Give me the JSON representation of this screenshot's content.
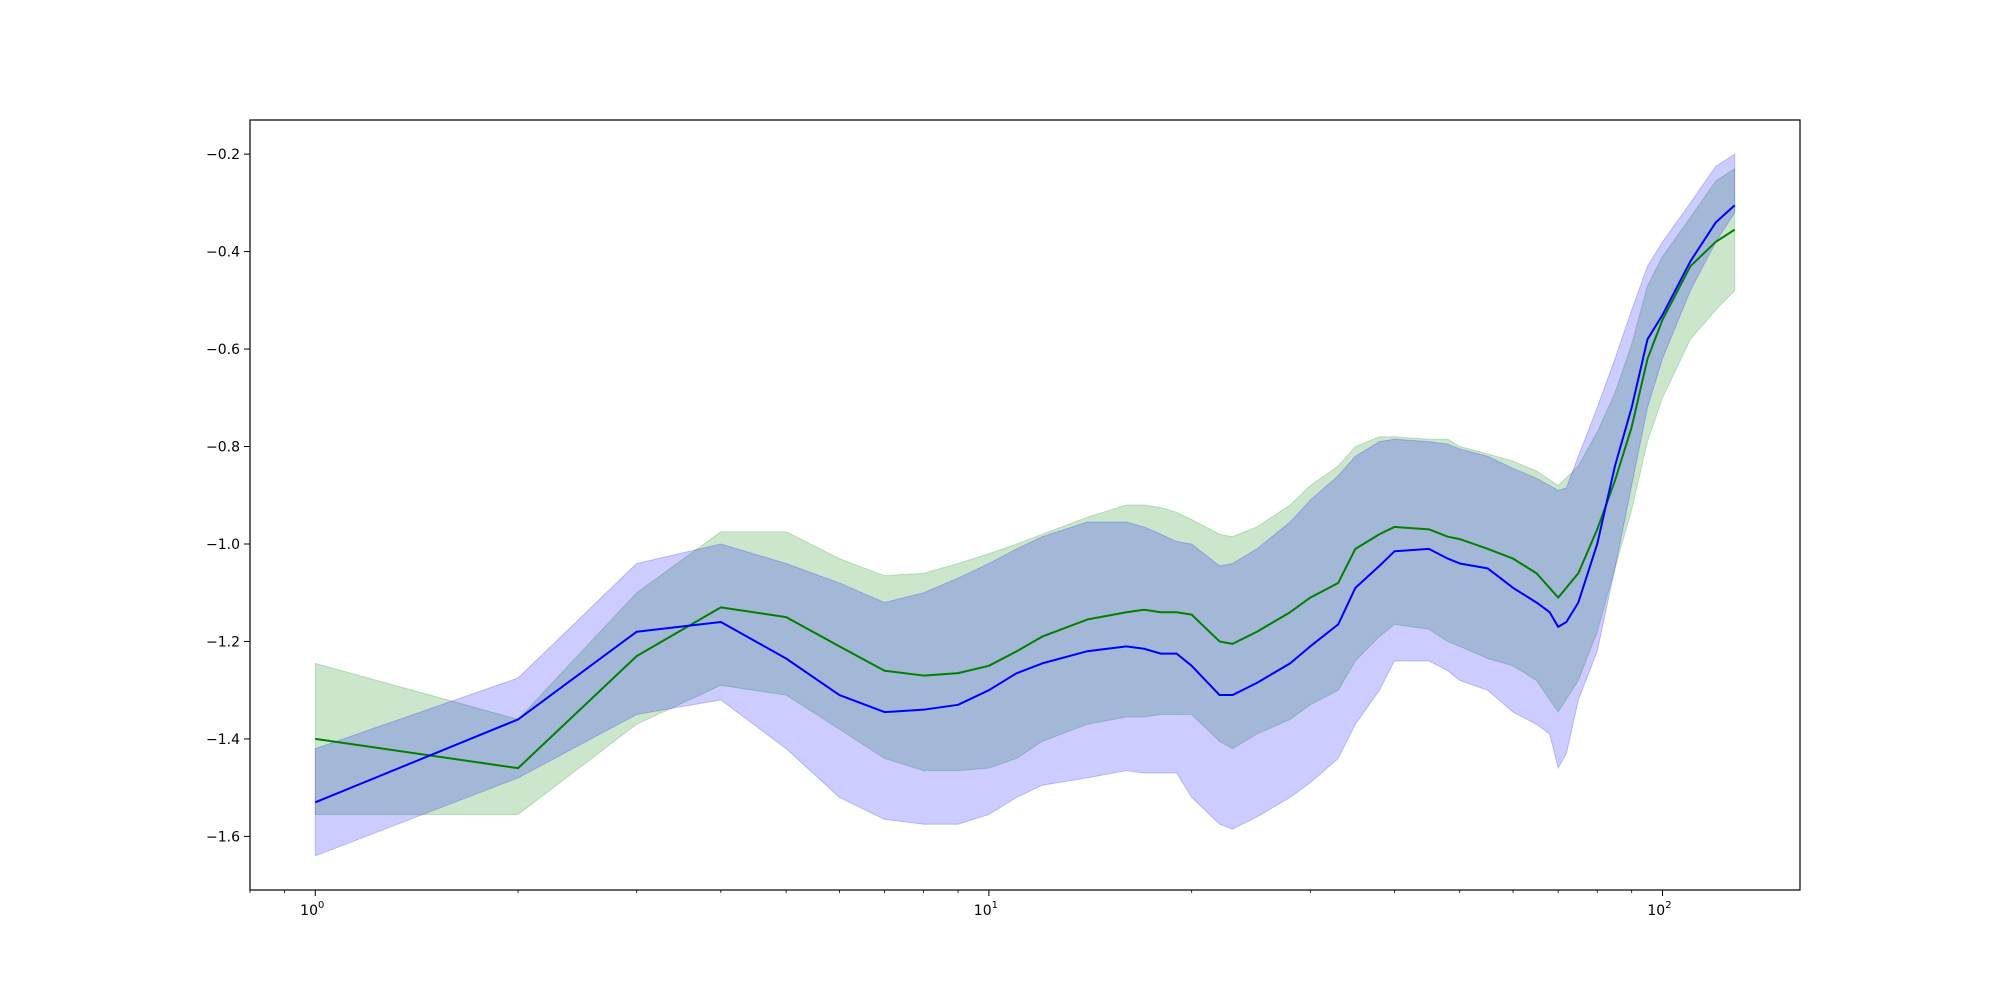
{
  "chart_data": {
    "type": "line",
    "xscale": "log",
    "xlim": [
      0.8,
      160
    ],
    "ylim": [
      -1.71,
      -0.13
    ],
    "xlabel": "",
    "ylabel": "",
    "title": "",
    "grid": false,
    "legend": null,
    "xticks": [
      {
        "value": 1,
        "base": "10",
        "exp": "0"
      },
      {
        "value": 10,
        "base": "10",
        "exp": "1"
      },
      {
        "value": 100,
        "base": "10",
        "exp": "2"
      }
    ],
    "yticks": [
      {
        "value": -1.6,
        "label": "−1.6"
      },
      {
        "value": -1.4,
        "label": "−1.4"
      },
      {
        "value": -1.2,
        "label": "−1.2"
      },
      {
        "value": -1.0,
        "label": "−1.0"
      },
      {
        "value": -0.8,
        "label": "−0.8"
      },
      {
        "value": -0.6,
        "label": "−0.6"
      },
      {
        "value": -0.4,
        "label": "−0.4"
      },
      {
        "value": -0.2,
        "label": "−0.2"
      }
    ],
    "series": [
      {
        "color": "#008000",
        "band_color": "#008000",
        "band_opacity": 0.2,
        "x": [
          1,
          2,
          3,
          4,
          5,
          6,
          7,
          8,
          9,
          10,
          11,
          12,
          14,
          16,
          17,
          18,
          19,
          20,
          22,
          23,
          25,
          28,
          30,
          33,
          35,
          38,
          40,
          45,
          48,
          50,
          55,
          60,
          65,
          70,
          75,
          80,
          85,
          90,
          95,
          100,
          110,
          120,
          128
        ],
        "mean": [
          -1.4,
          -1.46,
          -1.23,
          -1.13,
          -1.15,
          -1.21,
          -1.26,
          -1.27,
          -1.265,
          -1.25,
          -1.22,
          -1.19,
          -1.155,
          -1.14,
          -1.135,
          -1.14,
          -1.14,
          -1.145,
          -1.2,
          -1.205,
          -1.18,
          -1.14,
          -1.11,
          -1.08,
          -1.01,
          -0.98,
          -0.965,
          -0.97,
          -0.985,
          -0.99,
          -1.01,
          -1.03,
          -1.06,
          -1.11,
          -1.06,
          -0.97,
          -0.87,
          -0.76,
          -0.62,
          -0.54,
          -0.43,
          -0.38,
          -0.355
        ],
        "upper": [
          -1.245,
          -1.36,
          -1.1,
          -0.975,
          -0.975,
          -1.03,
          -1.065,
          -1.06,
          -1.04,
          -1.02,
          -1.0,
          -0.98,
          -0.945,
          -0.92,
          -0.92,
          -0.925,
          -0.935,
          -0.95,
          -0.98,
          -0.985,
          -0.965,
          -0.92,
          -0.88,
          -0.84,
          -0.8,
          -0.78,
          -0.78,
          -0.785,
          -0.785,
          -0.8,
          -0.815,
          -0.83,
          -0.85,
          -0.88,
          -0.84,
          -0.77,
          -0.69,
          -0.59,
          -0.47,
          -0.41,
          -0.33,
          -0.255,
          -0.23
        ],
        "lower": [
          -1.555,
          -1.555,
          -1.37,
          -1.29,
          -1.31,
          -1.38,
          -1.44,
          -1.465,
          -1.465,
          -1.46,
          -1.44,
          -1.405,
          -1.37,
          -1.355,
          -1.355,
          -1.35,
          -1.35,
          -1.35,
          -1.405,
          -1.42,
          -1.39,
          -1.36,
          -1.33,
          -1.3,
          -1.24,
          -1.19,
          -1.165,
          -1.175,
          -1.2,
          -1.21,
          -1.235,
          -1.25,
          -1.28,
          -1.345,
          -1.28,
          -1.18,
          -1.05,
          -0.93,
          -0.79,
          -0.7,
          -0.58,
          -0.52,
          -0.48
        ]
      },
      {
        "color": "#0000ff",
        "band_color": "#0000ff",
        "band_opacity": 0.2,
        "x": [
          1,
          2,
          3,
          4,
          5,
          6,
          7,
          8,
          9,
          10,
          11,
          12,
          14,
          16,
          17,
          18,
          19,
          20,
          22,
          23,
          25,
          28,
          30,
          33,
          35,
          38,
          40,
          45,
          48,
          50,
          55,
          60,
          65,
          68,
          70,
          72,
          75,
          80,
          85,
          90,
          95,
          100,
          110,
          120,
          128
        ],
        "mean": [
          -1.53,
          -1.36,
          -1.18,
          -1.16,
          -1.235,
          -1.31,
          -1.345,
          -1.34,
          -1.33,
          -1.3,
          -1.265,
          -1.245,
          -1.22,
          -1.21,
          -1.215,
          -1.225,
          -1.225,
          -1.25,
          -1.31,
          -1.31,
          -1.285,
          -1.245,
          -1.21,
          -1.165,
          -1.09,
          -1.045,
          -1.015,
          -1.01,
          -1.03,
          -1.04,
          -1.05,
          -1.09,
          -1.12,
          -1.14,
          -1.17,
          -1.16,
          -1.12,
          -1.0,
          -0.84,
          -0.72,
          -0.58,
          -0.53,
          -0.42,
          -0.34,
          -0.305
        ],
        "upper": [
          -1.42,
          -1.275,
          -1.04,
          -1.0,
          -1.04,
          -1.08,
          -1.12,
          -1.1,
          -1.07,
          -1.04,
          -1.01,
          -0.985,
          -0.955,
          -0.955,
          -0.965,
          -0.98,
          -0.995,
          -1.0,
          -1.045,
          -1.04,
          -1.01,
          -0.955,
          -0.91,
          -0.86,
          -0.82,
          -0.79,
          -0.785,
          -0.79,
          -0.795,
          -0.805,
          -0.82,
          -0.845,
          -0.865,
          -0.88,
          -0.89,
          -0.885,
          -0.82,
          -0.72,
          -0.62,
          -0.52,
          -0.43,
          -0.38,
          -0.3,
          -0.225,
          -0.2
        ],
        "lower": [
          -1.64,
          -1.48,
          -1.35,
          -1.32,
          -1.42,
          -1.52,
          -1.565,
          -1.575,
          -1.575,
          -1.555,
          -1.52,
          -1.495,
          -1.48,
          -1.465,
          -1.47,
          -1.47,
          -1.47,
          -1.52,
          -1.575,
          -1.585,
          -1.56,
          -1.52,
          -1.49,
          -1.44,
          -1.37,
          -1.3,
          -1.24,
          -1.24,
          -1.26,
          -1.28,
          -1.3,
          -1.345,
          -1.37,
          -1.39,
          -1.46,
          -1.43,
          -1.32,
          -1.22,
          -1.05,
          -0.88,
          -0.72,
          -0.62,
          -0.48,
          -0.38,
          -0.32
        ]
      }
    ]
  }
}
